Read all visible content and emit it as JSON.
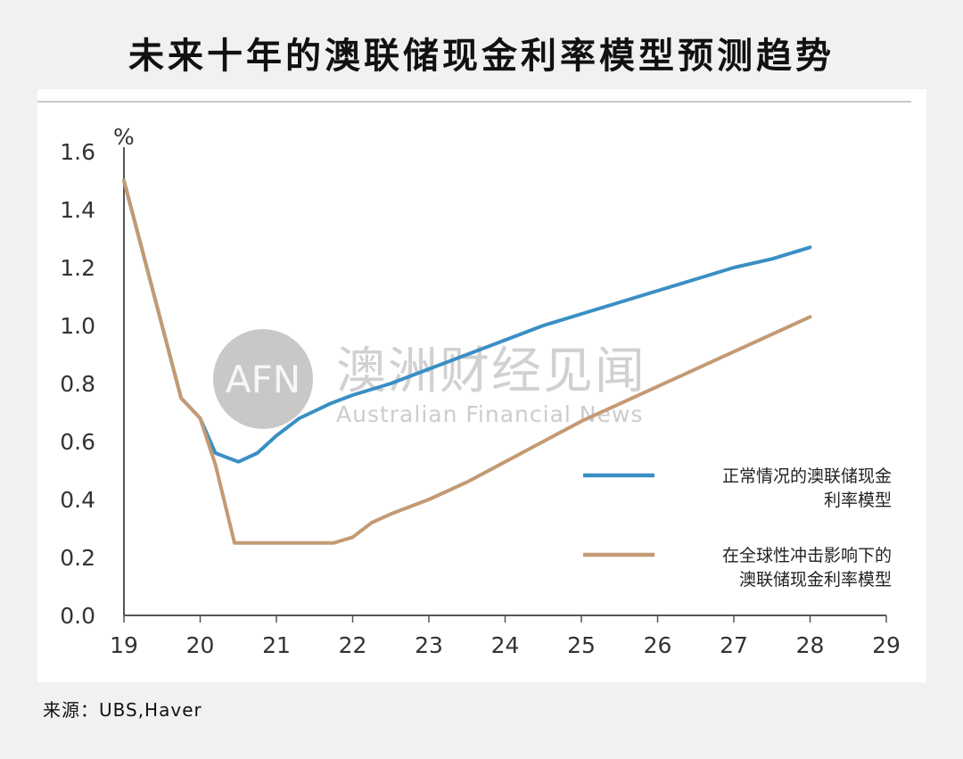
{
  "title": "未来十年的澳联储现金利率模型预测趋势",
  "source": "来源：UBS,Haver",
  "watermark": {
    "logo_text": "AFN",
    "cn": "澳洲财经见闻",
    "en": "Australian Financial News"
  },
  "colors": {
    "series_normal": "#3a8fc4",
    "series_shock": "#c49a74",
    "axis": "#555555"
  },
  "chart_data": {
    "type": "line",
    "ylabel": "%",
    "xlabel": "",
    "xlim": [
      19,
      29
    ],
    "ylim": [
      0,
      1.6
    ],
    "x_ticks": [
      "19",
      "20",
      "21",
      "22",
      "23",
      "24",
      "25",
      "26",
      "27",
      "28",
      "29"
    ],
    "y_ticks": [
      "0.0",
      "0.2",
      "0.4",
      "0.6",
      "0.8",
      "1.0",
      "1.2",
      "1.4",
      "1.6"
    ],
    "legend_position": "right",
    "series": [
      {
        "name": "正常情况的澳联储现金利率模型",
        "points": [
          [
            19.0,
            1.5
          ],
          [
            19.75,
            0.75
          ],
          [
            20.0,
            0.68
          ],
          [
            20.2,
            0.56
          ],
          [
            20.5,
            0.53
          ],
          [
            20.75,
            0.56
          ],
          [
            21.0,
            0.62
          ],
          [
            21.3,
            0.68
          ],
          [
            21.7,
            0.73
          ],
          [
            22.0,
            0.76
          ],
          [
            22.5,
            0.8
          ],
          [
            23.0,
            0.85
          ],
          [
            23.5,
            0.9
          ],
          [
            24.0,
            0.95
          ],
          [
            24.5,
            1.0
          ],
          [
            25.0,
            1.04
          ],
          [
            25.5,
            1.08
          ],
          [
            26.0,
            1.12
          ],
          [
            26.5,
            1.16
          ],
          [
            27.0,
            1.2
          ],
          [
            27.5,
            1.23
          ],
          [
            28.0,
            1.27
          ]
        ]
      },
      {
        "name": "在全球性冲击影响下的澳联储现金利率模型",
        "points": [
          [
            19.0,
            1.5
          ],
          [
            19.75,
            0.75
          ],
          [
            20.0,
            0.68
          ],
          [
            20.2,
            0.52
          ],
          [
            20.45,
            0.25
          ],
          [
            21.0,
            0.25
          ],
          [
            21.5,
            0.25
          ],
          [
            21.75,
            0.25
          ],
          [
            22.0,
            0.27
          ],
          [
            22.25,
            0.32
          ],
          [
            22.5,
            0.35
          ],
          [
            23.0,
            0.4
          ],
          [
            23.5,
            0.46
          ],
          [
            24.0,
            0.53
          ],
          [
            24.5,
            0.6
          ],
          [
            25.0,
            0.67
          ],
          [
            25.5,
            0.73
          ],
          [
            26.0,
            0.79
          ],
          [
            26.5,
            0.85
          ],
          [
            27.0,
            0.91
          ],
          [
            27.5,
            0.97
          ],
          [
            28.0,
            1.03
          ]
        ]
      }
    ],
    "legend": [
      {
        "lines": [
          "正常情况的澳联储现金",
          "利率模型"
        ]
      },
      {
        "lines": [
          "在全球性冲击影响下的",
          "澳联储现金利率模型"
        ]
      }
    ]
  }
}
